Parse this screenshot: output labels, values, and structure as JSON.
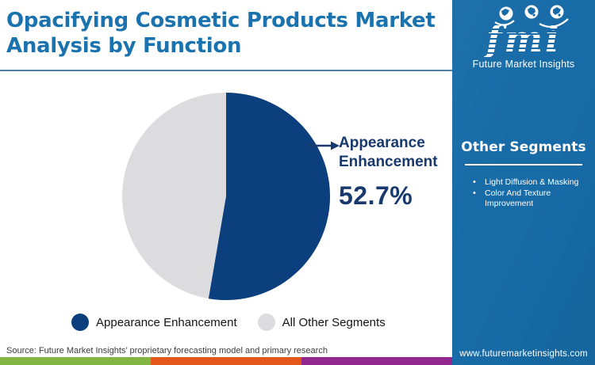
{
  "header": {
    "title": "Opacifying Cosmetic Products Market Analysis by Function",
    "title_lines": [
      "Opacifying Cosmetic Products Market",
      "Analysis by Function"
    ]
  },
  "logo": {
    "monogram": "fmi",
    "name": "Future Market Insights"
  },
  "chart_data": {
    "type": "pie",
    "title": "Opacifying Cosmetic Products Market Analysis by Function",
    "slices": [
      {
        "label": "Appearance Enhancement",
        "value": 52.7,
        "color": "#0c3f7d"
      },
      {
        "label": "All Other Segments",
        "value": 47.3,
        "color": "#dcdcde"
      }
    ],
    "start_angle_deg": 0,
    "direction": "clockwise",
    "callout": {
      "label": "Appearance Enhancement",
      "value_label": "52.7%"
    },
    "legend_position": "bottom"
  },
  "legend": {
    "items": [
      {
        "label": "Appearance Enhancement",
        "color": "#0c3f7d"
      },
      {
        "label": "All Other Segments",
        "color": "#dcdcde"
      }
    ]
  },
  "sidebar": {
    "heading": "Other Segments",
    "items": [
      "Light Diffusion & Masking",
      "Color And Texture Improvement"
    ],
    "website": "www.futuremarketinsights.com"
  },
  "footer": {
    "source": "Source: Future Market Insights’ proprietary forecasting model and primary research"
  },
  "colors": {
    "sidebar_bg": "#176ba7",
    "title": "#1a73ae",
    "callout_text": "#17396d",
    "divider": "#4d7fa7",
    "stripe": [
      "#82b541",
      "#e4571b",
      "#92278f"
    ]
  }
}
